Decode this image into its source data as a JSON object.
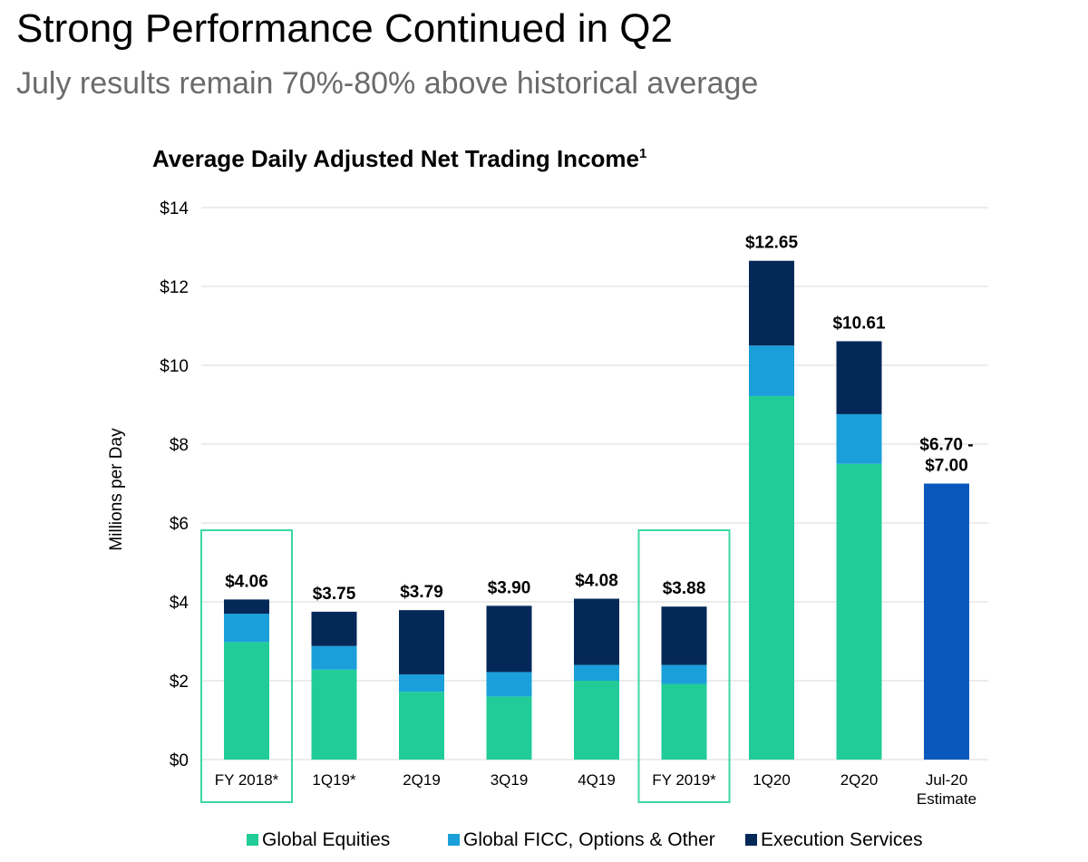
{
  "header": {
    "title": "Strong Performance Continued in Q2",
    "subtitle": "July results remain 70%-80% above historical average"
  },
  "colors": {
    "global_equities": "#21cc98",
    "global_ficc": "#1a9fda",
    "execution_services": "#042958",
    "estimate": "#0a58bd",
    "highlight_box": "#3dd6a4",
    "grid": "#d9d9d9"
  },
  "chart_data": {
    "type": "bar",
    "stacked": true,
    "title": "Average Daily Adjusted Net Trading Income",
    "title_superscript": "1",
    "xlabel": "",
    "ylabel": "Millions per Day",
    "ylim": [
      0,
      14
    ],
    "yticks": [
      0,
      2,
      4,
      6,
      8,
      10,
      12,
      14
    ],
    "ytick_labels": [
      "$0",
      "$2",
      "$4",
      "$6",
      "$8",
      "$10",
      "$12",
      "$14"
    ],
    "grid": true,
    "legend_position": "bottom",
    "categories": [
      [
        "FY 2018*"
      ],
      [
        "1Q19*"
      ],
      [
        "2Q19"
      ],
      [
        "3Q19"
      ],
      [
        "4Q19"
      ],
      [
        "FY 2019*"
      ],
      [
        "1Q20"
      ],
      [
        "2Q20"
      ],
      [
        "Jul-20",
        "Estimate"
      ]
    ],
    "highlighted_categories": [
      0,
      5
    ],
    "series": [
      {
        "name": "Global Equities",
        "color_key": "global_equities",
        "values": [
          2.98,
          2.28,
          1.72,
          1.6,
          2.0,
          1.92,
          9.22,
          7.5,
          0
        ]
      },
      {
        "name": "Global FICC, Options & Other",
        "color_key": "global_ficc",
        "values": [
          0.72,
          0.6,
          0.44,
          0.62,
          0.4,
          0.48,
          1.28,
          1.26,
          0
        ]
      },
      {
        "name": "Execution Services",
        "color_key": "execution_services",
        "values": [
          0.36,
          0.87,
          1.63,
          1.68,
          1.68,
          1.48,
          2.15,
          1.85,
          0
        ]
      },
      {
        "name": "Jul-20 Estimate",
        "color_key": "estimate",
        "in_legend": false,
        "values": [
          0,
          0,
          0,
          0,
          0,
          0,
          0,
          0,
          7.0
        ]
      }
    ],
    "totals": [
      4.06,
      3.75,
      3.79,
      3.9,
      4.08,
      3.88,
      12.65,
      10.61,
      7.0
    ],
    "total_labels": [
      [
        "$4.06"
      ],
      [
        "$3.75"
      ],
      [
        "$3.79"
      ],
      [
        "$3.90"
      ],
      [
        "$4.08"
      ],
      [
        "$3.88"
      ],
      [
        "$12.65"
      ],
      [
        "$10.61"
      ],
      [
        "$6.70 -",
        "$7.00"
      ]
    ]
  }
}
